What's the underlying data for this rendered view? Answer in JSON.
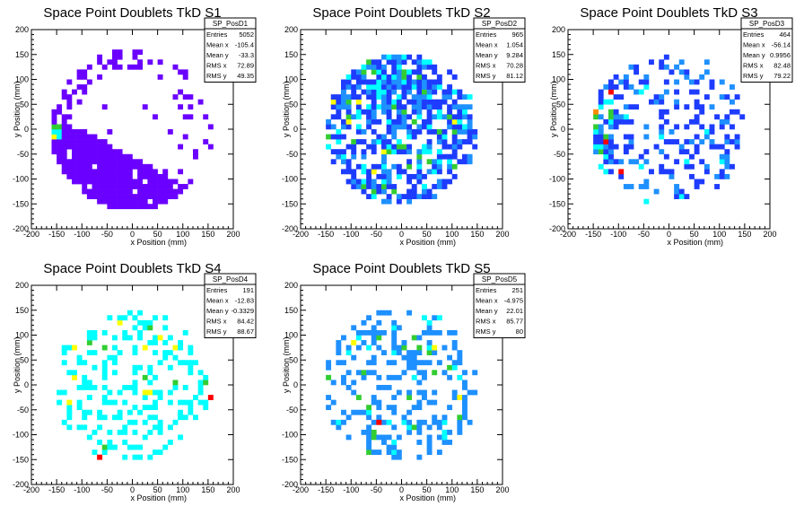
{
  "chart_data": [
    {
      "type": "heatmap",
      "title": "Space Point Doublets TkD S1",
      "xlabel": "x Position (mm)",
      "ylabel": "y Position (mm)",
      "xlim": [
        -200,
        200
      ],
      "ylim": [
        -200,
        200
      ],
      "xticks": [
        "-200",
        "-150",
        "-100",
        "-50",
        "0",
        "50",
        "100",
        "150",
        "200"
      ],
      "yticks": [
        "-200",
        "-150",
        "-100",
        "-50",
        "0",
        "50",
        "100",
        "150",
        "200"
      ],
      "stats": {
        "name": "SP_PosD1",
        "rows": [
          [
            "Entries",
            "5052"
          ],
          [
            "Mean x",
            "-105.4"
          ],
          [
            "Mean y",
            "-33.3"
          ],
          [
            "RMS x",
            "72.89"
          ],
          [
            "RMS y",
            "49.35"
          ]
        ]
      }
    },
    {
      "type": "heatmap",
      "title": "Space Point Doublets TkD S2",
      "xlabel": "x Position (mm)",
      "ylabel": "y Position (mm)",
      "xlim": [
        -200,
        200
      ],
      "ylim": [
        -200,
        200
      ],
      "xticks": [
        "-200",
        "-150",
        "-100",
        "-50",
        "0",
        "50",
        "100",
        "150",
        "200"
      ],
      "yticks": [
        "-200",
        "-150",
        "-100",
        "-50",
        "0",
        "50",
        "100",
        "150",
        "200"
      ],
      "stats": {
        "name": "SP_PosD2",
        "rows": [
          [
            "Entries",
            "965"
          ],
          [
            "Mean x",
            "1.054"
          ],
          [
            "Mean y",
            "9.284"
          ],
          [
            "RMS x",
            "70.28"
          ],
          [
            "RMS y",
            "81.12"
          ]
        ]
      }
    },
    {
      "type": "heatmap",
      "title": "Space Point Doublets TkD S3",
      "xlabel": "x Position (mm)",
      "ylabel": "y Position (mm)",
      "xlim": [
        -200,
        200
      ],
      "ylim": [
        -200,
        200
      ],
      "xticks": [
        "-200",
        "-150",
        "-100",
        "-50",
        "0",
        "50",
        "100",
        "150",
        "200"
      ],
      "yticks": [
        "-200",
        "-150",
        "-100",
        "-50",
        "0",
        "50",
        "100",
        "150",
        "200"
      ],
      "stats": {
        "name": "SP_PosD3",
        "rows": [
          [
            "Entries",
            "464"
          ],
          [
            "Mean x",
            "-56.14"
          ],
          [
            "Mean y",
            "0.9956"
          ],
          [
            "RMS x",
            "82.48"
          ],
          [
            "RMS y",
            "79.22"
          ]
        ]
      }
    },
    {
      "type": "heatmap",
      "title": "Space Point Doublets TkD S4",
      "xlabel": "x Position (mm)",
      "ylabel": "y Position (mm)",
      "xlim": [
        -200,
        200
      ],
      "ylim": [
        -200,
        200
      ],
      "xticks": [
        "-200",
        "-150",
        "-100",
        "-50",
        "0",
        "50",
        "100",
        "150",
        "200"
      ],
      "yticks": [
        "-200",
        "-150",
        "-100",
        "-50",
        "0",
        "50",
        "100",
        "150",
        "200"
      ],
      "stats": {
        "name": "SP_PosD4",
        "rows": [
          [
            "Entries",
            "191"
          ],
          [
            "Mean x",
            "-12.83"
          ],
          [
            "Mean y",
            "-0.3329"
          ],
          [
            "RMS x",
            "84.42"
          ],
          [
            "RMS y",
            "88.67"
          ]
        ]
      }
    },
    {
      "type": "heatmap",
      "title": "Space Point Doublets TkD S5",
      "xlabel": "x Position (mm)",
      "ylabel": "y Position (mm)",
      "xlim": [
        -200,
        200
      ],
      "ylim": [
        -200,
        200
      ],
      "xticks": [
        "-200",
        "-150",
        "-100",
        "-50",
        "0",
        "50",
        "100",
        "150",
        "200"
      ],
      "yticks": [
        "-200",
        "-150",
        "-100",
        "-50",
        "0",
        "50",
        "100",
        "150",
        "200"
      ],
      "stats": {
        "name": "SP_PosD5",
        "rows": [
          [
            "Entries",
            "251"
          ],
          [
            "Mean x",
            "-4.975"
          ],
          [
            "Mean y",
            "22.01"
          ],
          [
            "RMS x",
            "85.77"
          ],
          [
            "RMS y",
            "80"
          ]
        ]
      }
    }
  ],
  "colors": {
    "low": "#6a00ff",
    "midlow": "#1e3cff",
    "mid": "#1e90ff",
    "cyan": "#00ffff",
    "green": "#32cd32",
    "yellow": "#ffff00",
    "orange": "#ff8c00",
    "red": "#ff0000"
  }
}
